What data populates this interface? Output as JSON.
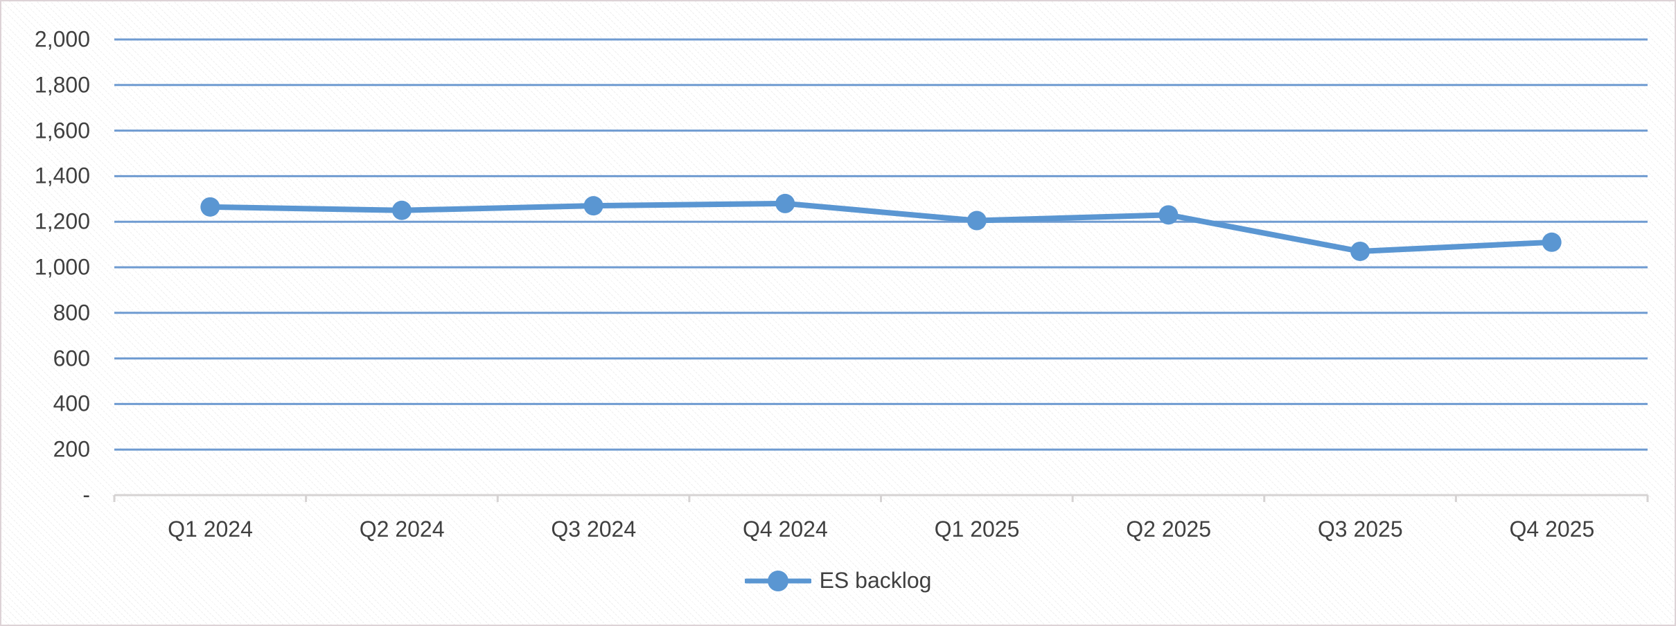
{
  "chart_data": {
    "type": "line",
    "title": "",
    "categories": [
      "Q1 2024",
      "Q2 2024",
      "Q3 2024",
      "Q4 2024",
      "Q1 2025",
      "Q2 2025",
      "Q3 2025",
      "Q4 2025"
    ],
    "series": [
      {
        "name": "ES backlog",
        "values": [
          1265,
          1250,
          1270,
          1280,
          1205,
          1230,
          1070,
          1110
        ]
      }
    ],
    "xlabel": "",
    "ylabel": "",
    "ylim": [
      0,
      2000
    ],
    "ytick_step": 200,
    "ytick_values": [
      2000,
      1800,
      1600,
      1400,
      1200,
      1000,
      800,
      600,
      400,
      200,
      0
    ],
    "ytick_labels": [
      "2,000",
      "1,800",
      "1,600",
      "1,400",
      "1,200",
      "1,000",
      "800",
      "600",
      "400",
      "200",
      "-"
    ],
    "grid": "horizontal gridlines on",
    "legend_position": "bottom-center",
    "colors": {
      "series": "#5a96d2",
      "gridline": "#6f9bd1",
      "axis": "#d6d3d3",
      "text": "#404040",
      "border": "#ddd2d6",
      "background": "#ffffff"
    }
  }
}
